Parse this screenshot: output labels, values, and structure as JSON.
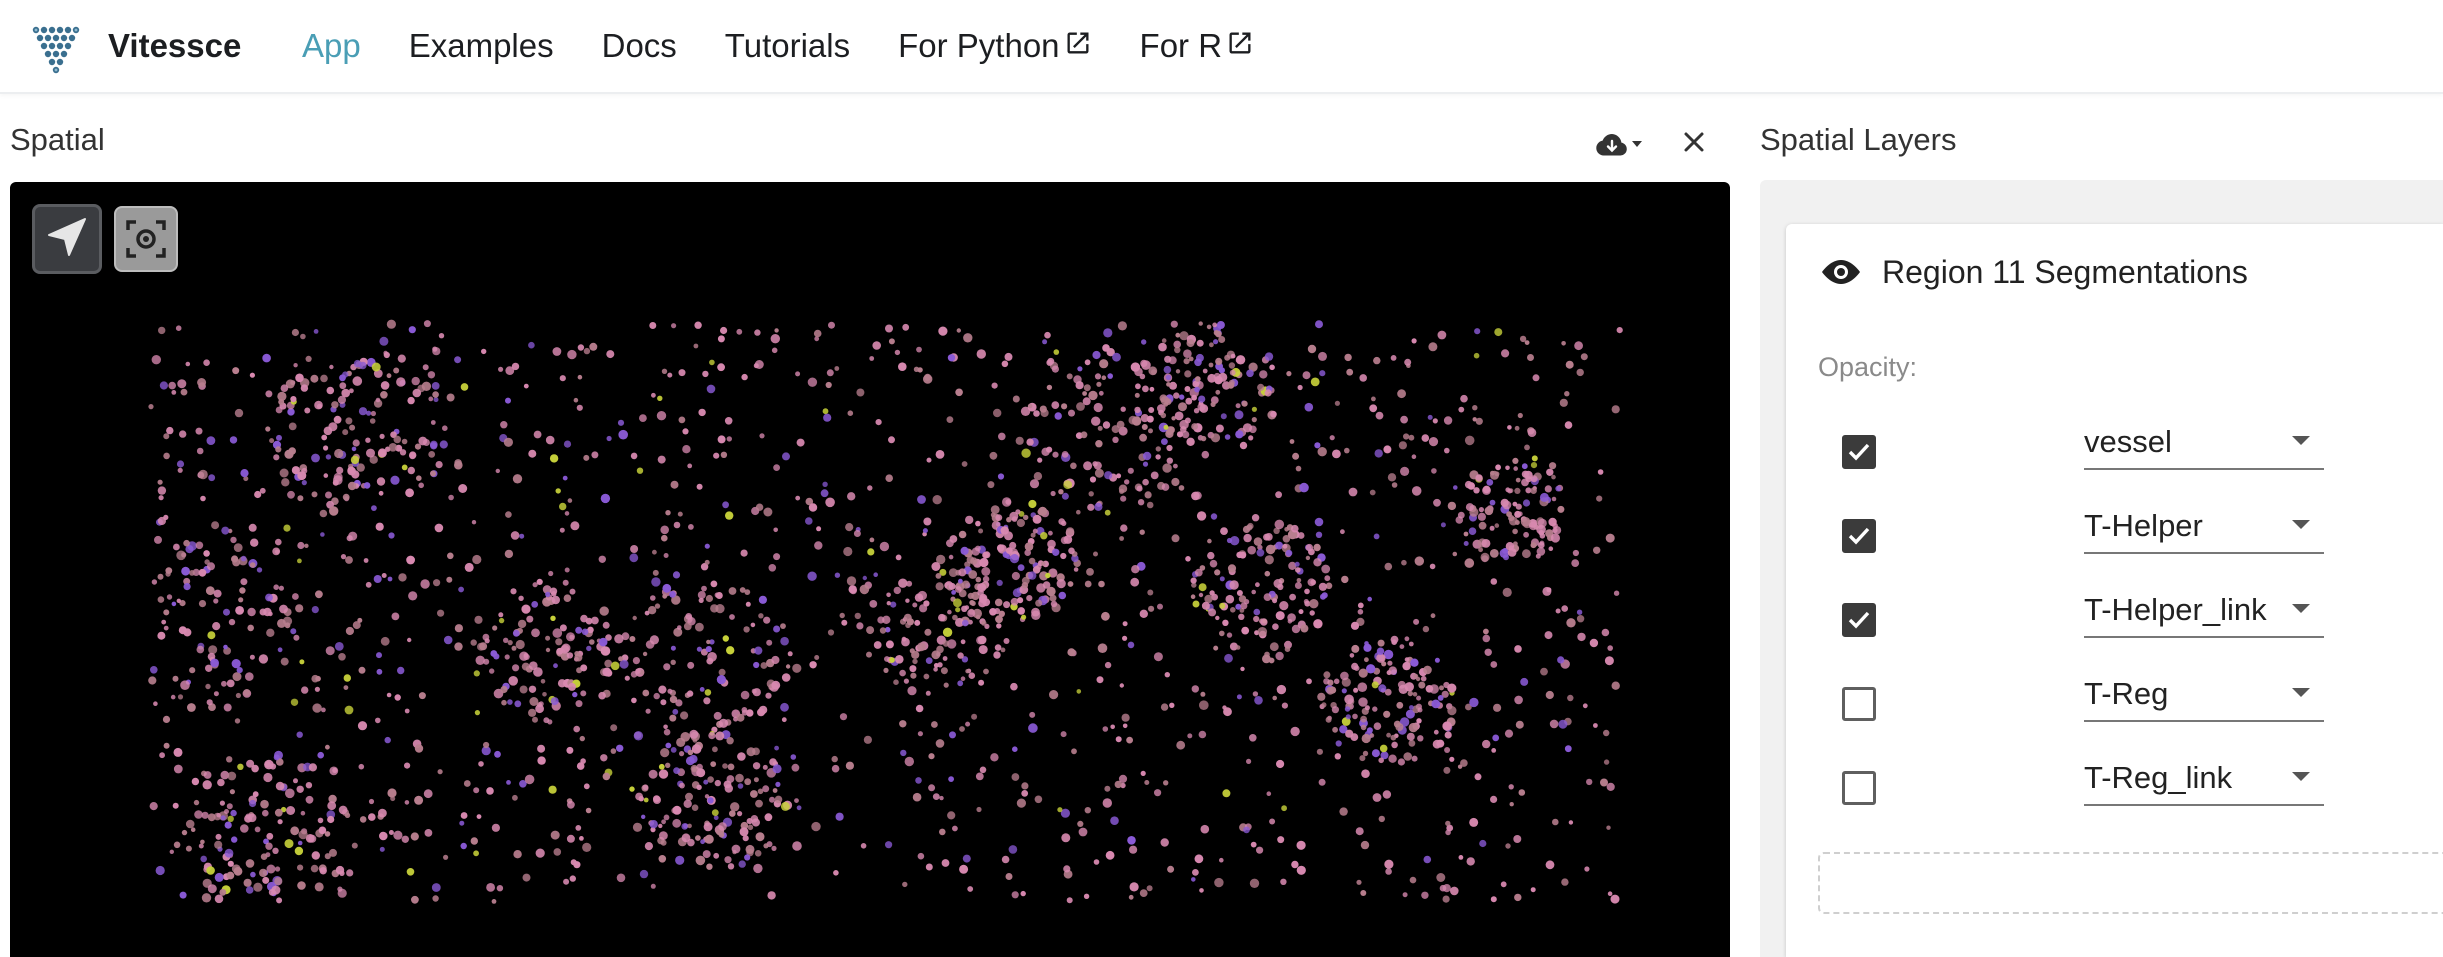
{
  "brand": {
    "name": "Vitessce"
  },
  "nav": {
    "links": [
      {
        "label": "App",
        "active": true,
        "external": false
      },
      {
        "label": "Examples",
        "active": false,
        "external": false
      },
      {
        "label": "Docs",
        "active": false,
        "external": false
      },
      {
        "label": "Tutorials",
        "active": false,
        "external": false
      },
      {
        "label": "For Python",
        "active": false,
        "external": true
      },
      {
        "label": "For R",
        "active": false,
        "external": true
      }
    ]
  },
  "spatial": {
    "title": "Spatial",
    "download_icon": "cloud-download-icon",
    "close_icon": "close-icon",
    "tools": [
      "select-pointer-icon",
      "recenter-icon"
    ]
  },
  "layers": {
    "title": "Spatial Layers",
    "layer_name": "Region 11 Segmentations",
    "opacity_label": "Opacity:",
    "channels": [
      {
        "checked": true,
        "value": "vessel"
      },
      {
        "checked": true,
        "value": "T-Helper"
      },
      {
        "checked": true,
        "value": "T-Helper_link"
      },
      {
        "checked": false,
        "value": "T-Reg"
      },
      {
        "checked": false,
        "value": "T-Reg_link"
      }
    ]
  },
  "colors": {
    "accent": "#4a9eb5",
    "canvas": "#000000",
    "cell_pink": "#d889b0",
    "cell_rose": "#b87e8e",
    "cell_violet": "#8a5ad6",
    "cell_yellow": "#c8d23a"
  }
}
